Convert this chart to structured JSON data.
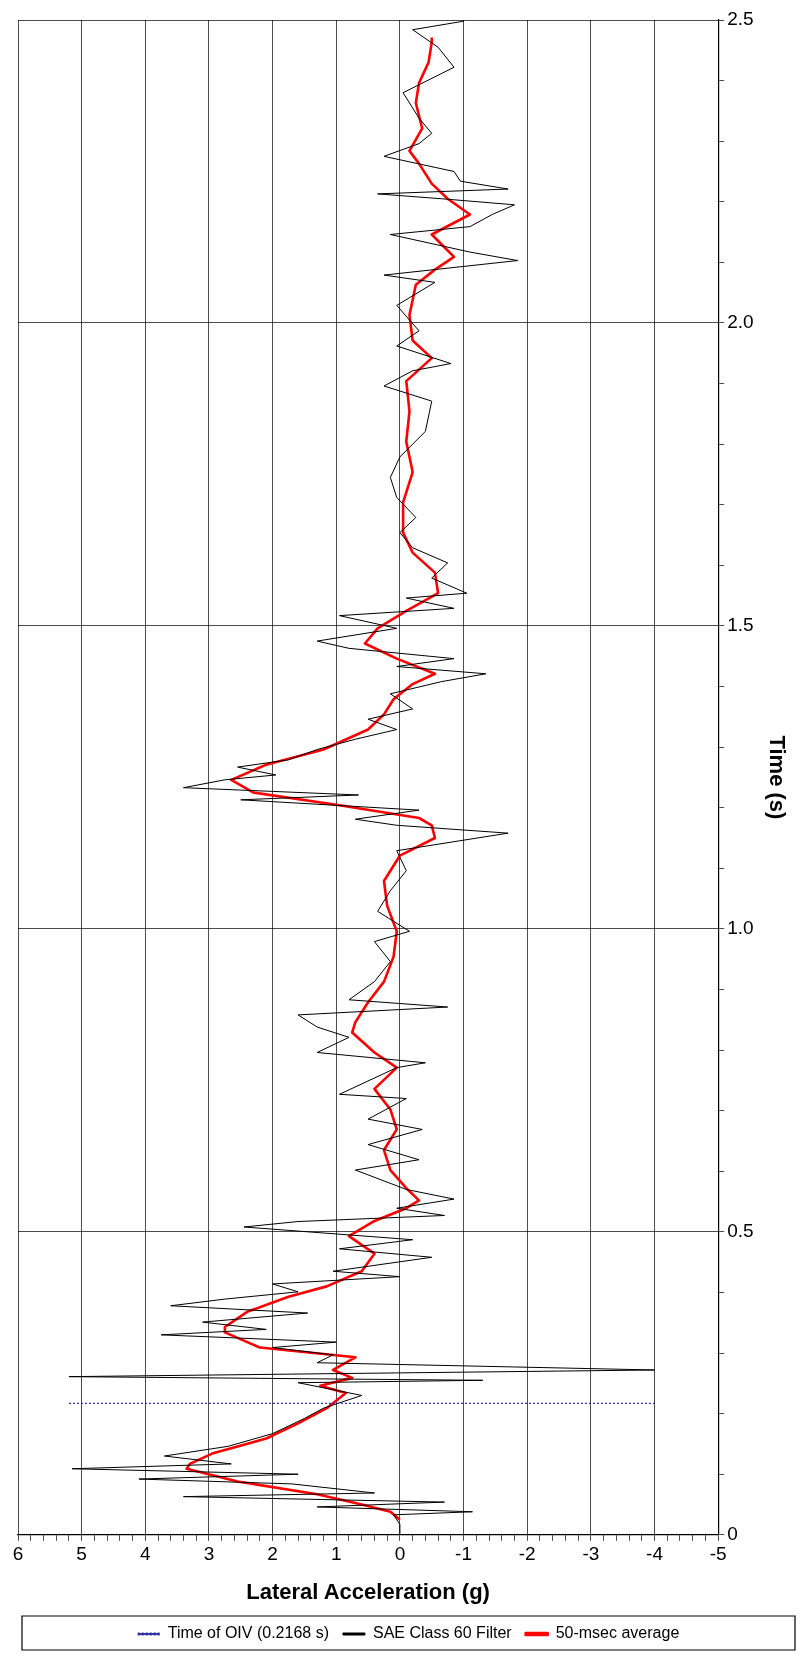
{
  "chart_data": {
    "type": "line",
    "xlabel": "Lateral Acceleration (g)",
    "ylabel": "Time (s)",
    "xlim": [
      6,
      -5
    ],
    "ylim": [
      0,
      2.5
    ],
    "grid": true,
    "legend": "bottom",
    "marker": "none",
    "yticks": [
      0,
      {
        "value": 0.1,
        "label": null
      },
      {
        "value": 0.2,
        "label": null
      },
      {
        "value": 0.3,
        "label": null
      },
      {
        "value": 0.4,
        "label": null
      },
      0.5,
      {
        "value": 0.6,
        "label": null
      },
      {
        "value": 0.7,
        "label": null
      },
      {
        "value": 0.8,
        "label": null
      },
      {
        "value": 0.9,
        "label": null
      },
      {
        "value": 1,
        "label": "1.0"
      },
      {
        "value": 1.1,
        "label": null
      },
      {
        "value": 1.2,
        "label": null
      },
      {
        "value": 1.3,
        "label": null
      },
      {
        "value": 1.4,
        "label": null
      },
      1.5,
      {
        "value": 1.6,
        "label": null
      },
      {
        "value": 1.7,
        "label": null
      },
      {
        "value": 1.8,
        "label": null
      },
      {
        "value": 1.9,
        "label": null
      },
      {
        "value": 2,
        "label": "2.0"
      },
      {
        "value": 2.1,
        "label": null
      },
      {
        "value": 2.2,
        "label": null
      },
      {
        "value": 2.3,
        "label": null
      },
      {
        "value": 2.4,
        "label": null
      },
      2.5
    ],
    "xticks": [
      6,
      {
        "value": 5.8,
        "label": null
      },
      {
        "value": 5.6,
        "label": null
      },
      {
        "value": 5.4,
        "label": null
      },
      {
        "value": 5.2,
        "label": null
      },
      5,
      {
        "value": 4.8,
        "label": null
      },
      {
        "value": 4.6,
        "label": null
      },
      {
        "value": 4.4,
        "label": null
      },
      {
        "value": 4.2,
        "label": null
      },
      4,
      {
        "value": 3.8,
        "label": null
      },
      {
        "value": 3.6,
        "label": null
      },
      {
        "value": 3.4,
        "label": null
      },
      {
        "value": 3.2,
        "label": null
      },
      3,
      {
        "value": 2.8,
        "label": null
      },
      {
        "value": 2.6,
        "label": null
      },
      {
        "value": 2.4,
        "label": null
      },
      {
        "value": 2.2,
        "label": null
      },
      2,
      {
        "value": 1.8,
        "label": null
      },
      {
        "value": 1.6,
        "label": null
      },
      {
        "value": 1.4,
        "label": null
      },
      {
        "value": 1.2,
        "label": null
      },
      1,
      {
        "value": 0.8,
        "label": null
      },
      {
        "value": 0.6,
        "label": null
      },
      {
        "value": 0.4,
        "label": null
      },
      {
        "value": 0.2,
        "label": null
      },
      0,
      {
        "value": -0.2,
        "label": null
      },
      {
        "value": -0.4,
        "label": null
      },
      {
        "value": -0.6,
        "label": null
      },
      {
        "value": -0.8,
        "label": null
      },
      -1,
      {
        "value": -1.2,
        "label": null
      },
      {
        "value": -1.4,
        "label": null
      },
      {
        "value": -1.6,
        "label": null
      },
      {
        "value": -1.8,
        "label": null
      },
      -2,
      {
        "value": -2.2,
        "label": null
      },
      {
        "value": -2.4,
        "label": null
      },
      {
        "value": -2.6,
        "label": null
      },
      {
        "value": -2.8,
        "label": null
      },
      -3,
      {
        "value": -3.2,
        "label": null
      },
      {
        "value": -3.4,
        "label": null
      },
      {
        "value": -3.6,
        "label": null
      },
      {
        "value": -3.8,
        "label": null
      },
      -4,
      {
        "value": -4.2,
        "label": null
      },
      {
        "value": -4.4,
        "label": null
      },
      {
        "value": -4.6,
        "label": null
      },
      {
        "value": -4.8,
        "label": null
      },
      -5
    ],
    "series": [
      {
        "name": "Time of OIV (0.2168 s)",
        "color": "#3333aa",
        "line_style": "dotted",
        "x": [
          5.2,
          -4
        ],
        "values": [
          0.2168,
          0.2168
        ]
      },
      {
        "name": "SAE Class 60 Filter",
        "color": "#000000",
        "line_style": "solid",
        "values": [
          0,
          0.017,
          0.033,
          0.038,
          0.046,
          0.054,
          0.063,
          0.069,
          0.084,
          0.092,
          0.1,
          0.109,
          0.117,
          0.13,
          0.146,
          0.167,
          0.192,
          0.209,
          0.23,
          0.251,
          0.255,
          0.261,
          0.272,
          0.284,
          0.297,
          0.309,
          0.318,
          0.33,
          0.339,
          0.351,
          0.366,
          0.378,
          0.389,
          0.401,
          0.414,
          0.426,
          0.435,
          0.458,
          0.472,
          0.487,
          0.508,
          0.517,
          0.527,
          0.539,
          0.554,
          0.57,
          0.602,
          0.619,
          0.644,
          0.669,
          0.686,
          0.72,
          0.727,
          0.771,
          0.779,
          0.796,
          0.821,
          0.838,
          0.858,
          0.871,
          0.883,
          0.913,
          0.946,
          0.979,
          0.996,
          1.029,
          1.063,
          1.096,
          1.129,
          1.158,
          1.171,
          1.181,
          1.196,
          1.213,
          1.221,
          1.233,
          1.246,
          1.254,
          1.267,
          1.279,
          1.296,
          1.313,
          1.329,
          1.346,
          1.363,
          1.388,
          1.408,
          1.421,
          1.433,
          1.446,
          1.463,
          1.475,
          1.496,
          1.517,
          1.529,
          1.546,
          1.554,
          1.579,
          1.604,
          1.629,
          1.654,
          1.679,
          1.712,
          1.745,
          1.779,
          1.821,
          1.871,
          1.896,
          1.921,
          1.933,
          1.962,
          1.987,
          2.029,
          2.067,
          2.079,
          2.103,
          2.117,
          2.146,
          2.159,
          2.179,
          2.195,
          2.205,
          2.213,
          2.221,
          2.234,
          2.25,
          2.275,
          2.296,
          2.313,
          2.338,
          2.38,
          2.422,
          2.455,
          2.484,
          2.498,
          2.5
        ],
        "x": [
          0,
          0,
          0.1,
          -1.14,
          1.3,
          -0.7,
          3.4,
          0.4,
          1.7,
          4.1,
          1.6,
          5.15,
          2.65,
          3.7,
          2.7,
          2,
          1.5,
          1.2,
          0.6,
          1.6,
          -1.3,
          5.2,
          -4,
          1.3,
          1.05,
          2,
          1,
          3.75,
          2.1,
          3.1,
          1.45,
          3.6,
          2.75,
          1.6,
          2,
          0,
          1.05,
          -0.5,
          0.95,
          -0.2,
          2.45,
          1.6,
          -0.7,
          0.05,
          -0.85,
          -0.1,
          0.7,
          -0.3,
          0.5,
          -0.35,
          0.5,
          -0.1,
          0.95,
          0.05,
          -0.4,
          1.3,
          0.8,
          1.3,
          1.6,
          -0.75,
          0.8,
          0.4,
          0.15,
          0.4,
          -0.15,
          0.35,
          0.15,
          -0.1,
          0.05,
          -1.7,
          0.05,
          0.7,
          -0.3,
          2.5,
          0.65,
          3.4,
          2.75,
          1.95,
          2.55,
          1.75,
          1.3,
          0.7,
          0.05,
          0.5,
          -0.2,
          0.15,
          -0.65,
          -1.35,
          0.05,
          -0.85,
          0.8,
          1.3,
          0.05,
          0.95,
          -0.85,
          -0.1,
          -1.05,
          -0.5,
          -0.75,
          -0.2,
          0,
          -0.25,
          0.05,
          0.15,
          0,
          -0.4,
          -0.5,
          0.25,
          -0.2,
          -0.8,
          0.05,
          -0.3,
          0.05,
          -0.55,
          0.25,
          -1.85,
          -1.1,
          0.15,
          -1.1,
          -1.45,
          -1.8,
          -0.65,
          0.35,
          -1.7,
          -0.95,
          -0.85,
          0.25,
          -0.3,
          -0.5,
          -0.3,
          -0.05,
          -0.85,
          -0.6,
          -0.2,
          -1,
          -1
        ]
      },
      {
        "name": "50-msec average",
        "color": "#ff0000",
        "line_style": "solid",
        "values": [
          0.025,
          0.038,
          0.05,
          0.067,
          0.088,
          0.109,
          0.117,
          0.134,
          0.159,
          0.184,
          0.209,
          0.234,
          0.246,
          0.259,
          0.272,
          0.293,
          0.309,
          0.334,
          0.343,
          0.368,
          0.393,
          0.41,
          0.435,
          0.464,
          0.493,
          0.518,
          0.539,
          0.552,
          0.572,
          0.602,
          0.635,
          0.669,
          0.702,
          0.736,
          0.771,
          0.796,
          0.829,
          0.846,
          0.879,
          0.913,
          0.954,
          0.996,
          1.038,
          1.079,
          1.121,
          1.15,
          1.171,
          1.183,
          1.204,
          1.225,
          1.246,
          1.271,
          1.296,
          1.329,
          1.354,
          1.379,
          1.404,
          1.421,
          1.446,
          1.471,
          1.496,
          1.525,
          1.554,
          1.588,
          1.621,
          1.654,
          1.704,
          1.754,
          1.804,
          1.854,
          1.904,
          1.942,
          1.971,
          2.013,
          2.063,
          2.088,
          2.109,
          2.146,
          2.179,
          2.205,
          2.23,
          2.263,
          2.284,
          2.321,
          2.363,
          2.396,
          2.43,
          2.463,
          2.471
        ],
        "x": [
          0,
          0.15,
          0.6,
          1.3,
          2.55,
          3.35,
          3.3,
          2.95,
          2.1,
          1.6,
          1.15,
          0.85,
          1.25,
          0.75,
          1.05,
          0.7,
          2.2,
          2.75,
          2.75,
          2.4,
          1.75,
          1.15,
          0.6,
          0.4,
          0.8,
          0.4,
          -0.1,
          -0.3,
          -0.1,
          0.15,
          0.25,
          0.05,
          0.15,
          0.4,
          0.05,
          0.4,
          0.75,
          0.7,
          0.5,
          0.25,
          0.1,
          0.05,
          0.2,
          0.25,
          0,
          -0.55,
          -0.5,
          -0.3,
          0.95,
          2.3,
          2.65,
          2.1,
          1.2,
          0.5,
          0.25,
          0.1,
          -0.2,
          -0.55,
          0.05,
          0.55,
          0.35,
          -0.1,
          -0.6,
          -0.55,
          -0.2,
          -0.05,
          -0.05,
          -0.2,
          -0.1,
          -0.15,
          -0.1,
          -0.5,
          -0.2,
          -0.15,
          -0.25,
          -0.55,
          -0.85,
          -0.5,
          -1.1,
          -0.75,
          -0.5,
          -0.3,
          -0.15,
          -0.35,
          -0.25,
          -0.3,
          -0.45,
          -0.5,
          -0.5
        ]
      }
    ]
  }
}
